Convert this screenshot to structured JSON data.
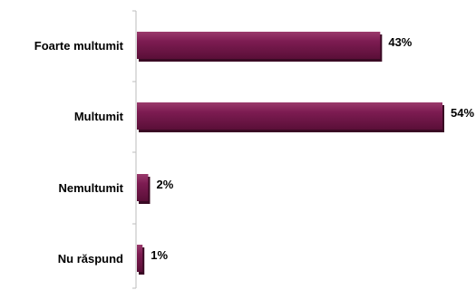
{
  "chart_data": {
    "type": "bar",
    "orientation": "horizontal",
    "categories": [
      "Foarte multumit",
      "Multumit",
      "Nemultumit",
      "Nu răspund"
    ],
    "values": [
      43,
      54,
      2,
      1
    ],
    "value_labels": [
      "43%",
      "54%",
      "2%",
      "1%"
    ],
    "title": "",
    "xlabel": "",
    "ylabel": "",
    "xlim": [
      0,
      54
    ],
    "grid": false,
    "legend": "none",
    "bar_color": "#7a1a4f",
    "bar_shadow_color": "#3a0a24"
  }
}
